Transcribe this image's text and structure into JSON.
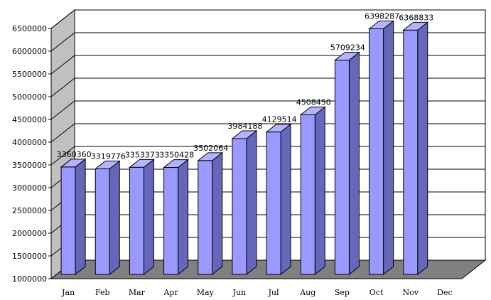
{
  "chart_data": {
    "type": "bar",
    "title": "",
    "xlabel": "",
    "ylabel": "",
    "categories": [
      "Jan",
      "Feb",
      "Mar",
      "Apr",
      "May",
      "Jun",
      "Jul",
      "Aug",
      "Sep",
      "Oct",
      "Nov",
      "Dec"
    ],
    "values": [
      3360360,
      3319776,
      3353373,
      3350428,
      3502064,
      3984188,
      4129514,
      4508450,
      5709234,
      6398287,
      6368833,
      null
    ],
    "data_labels": [
      "3360360",
      "3319776",
      "3353373",
      "3350428",
      "3502064",
      "3984188",
      "4129514",
      "4508450",
      "5709234",
      "6398287",
      "6368833",
      ""
    ],
    "ylim": [
      1000000,
      6500000
    ],
    "yticks": [
      "1000000",
      "1500000",
      "2000000",
      "2500000",
      "3000000",
      "3500000",
      "4000000",
      "4500000",
      "5000000",
      "5500000",
      "6000000",
      "6500000"
    ],
    "grid": true,
    "style": "3d-column",
    "colors": {
      "bar_front": "#9999ff",
      "bar_side": "#6666bb",
      "bar_top": "#b3b3ff",
      "floor": "#808080",
      "wall": "#c0c0c0",
      "grid": "#000000"
    }
  }
}
